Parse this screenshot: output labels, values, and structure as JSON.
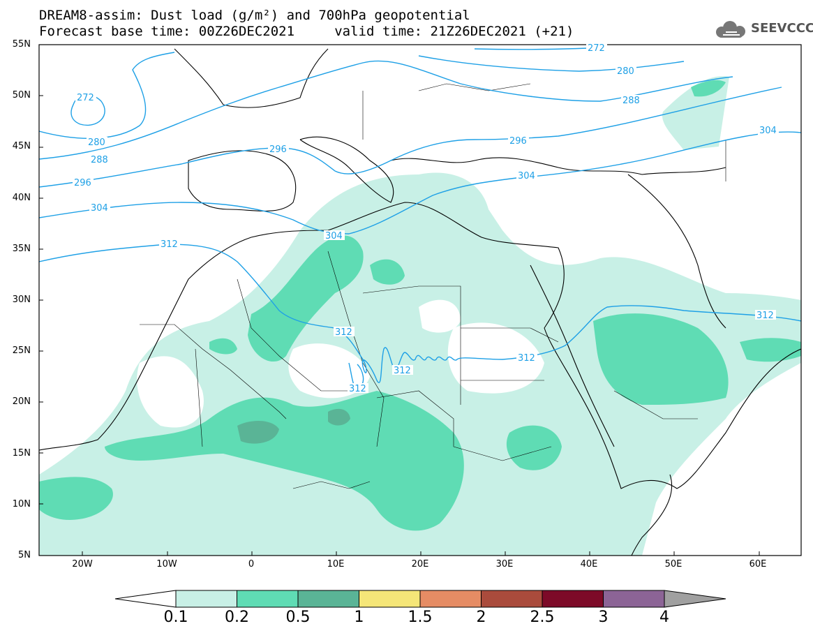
{
  "title": {
    "line1": "DREAM8-assim: Dust load (g/m²) and 700hPa geopotential",
    "line2": "Forecast base time: 00Z26DEC2021     valid time: 21Z26DEC2021 (+21)"
  },
  "logo": {
    "text": "SEEVCCC",
    "icon": "cloud-icon"
  },
  "axes": {
    "lat_labels": [
      "55N",
      "50N",
      "45N",
      "40N",
      "35N",
      "30N",
      "25N",
      "20N",
      "15N",
      "10N",
      "5N"
    ],
    "lon_labels": [
      "20W",
      "10W",
      "0",
      "10E",
      "20E",
      "30E",
      "40E",
      "50E",
      "60E"
    ]
  },
  "contours": {
    "color": "#1ea0e6",
    "labels": [
      "272",
      "272",
      "280",
      "280",
      "288",
      "288",
      "296",
      "296",
      "296",
      "304",
      "304",
      "304",
      "304",
      "312",
      "312",
      "312",
      "312",
      "312",
      "312"
    ]
  },
  "colorbar": {
    "levels": [
      "0.1",
      "0.2",
      "0.5",
      "1",
      "1.5",
      "2",
      "2.5",
      "3",
      "4"
    ],
    "colors": [
      "#c8f0e6",
      "#5fdcb4",
      "#5ab496",
      "#f5e678",
      "#e68c64",
      "#aa4b3c",
      "#7d0a28",
      "#8c6496",
      "#a0a0a0"
    ]
  },
  "colors": {
    "dust_light": "#c8f0e6",
    "dust_medium": "#5fdcb4",
    "dust_heavy": "#5ab496"
  }
}
